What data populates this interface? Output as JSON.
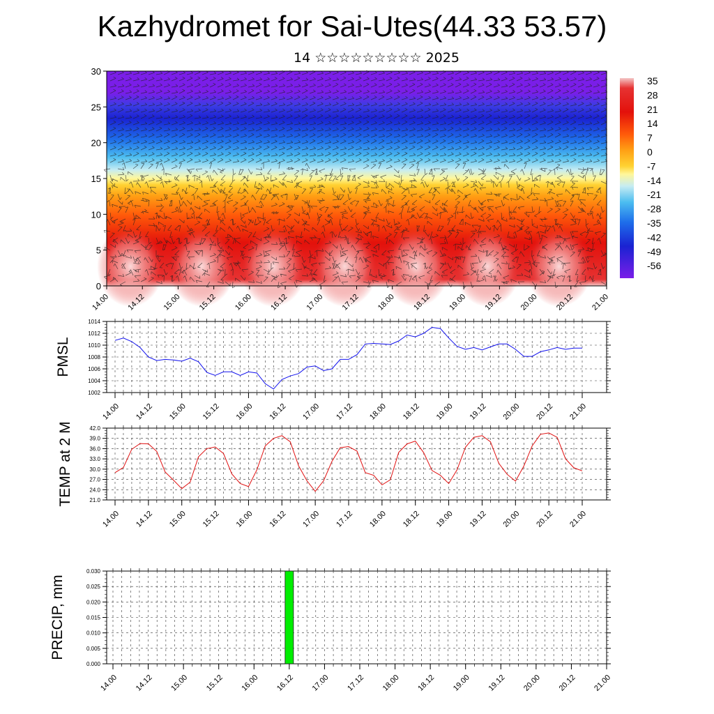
{
  "header": {
    "title": "Kazhydromet for Sai-Utes(44.33 53.57)",
    "subtitle": "14 ☆☆☆☆☆☆☆☆☆ 2025"
  },
  "time_ticks": [
    "14.00",
    "14.12",
    "15.00",
    "15.12",
    "16.00",
    "16.12",
    "17.00",
    "17.12",
    "18.00",
    "18.12",
    "19.00",
    "19.12",
    "20.00",
    "20.12",
    "21.00"
  ],
  "chart_data": [
    {
      "type": "heatmap",
      "title": "",
      "xlabel": "",
      "ylabel": "",
      "xlim": [
        0,
        168
      ],
      "ylim": [
        0,
        30
      ],
      "y_ticks": [
        0,
        5,
        10,
        15,
        20,
        25,
        30
      ],
      "z_description": "temperature with wind barbs",
      "colorbar": {
        "labels": [
          "35",
          "28",
          "21",
          "14",
          "7",
          "0",
          "-7",
          "-14",
          "-21",
          "-28",
          "-35",
          "-42",
          "-49",
          "-56"
        ],
        "range": [
          -60,
          38
        ],
        "colors": [
          "#7a1ee8",
          "#2a1ef0",
          "#2e8ff0",
          "#b9e6f2",
          "#fff79a",
          "#ffc21a",
          "#ff8a0e",
          "#f02b08",
          "#d4070a",
          "#f3b8b8"
        ]
      }
    },
    {
      "type": "line",
      "ylabel": "PMSL",
      "ylim": [
        1002,
        1014
      ],
      "y_ticks": [
        "1002",
        "1004",
        "1006",
        "1008",
        "1010",
        "1012",
        "1014"
      ],
      "color": "#1010ee",
      "x_hours": [
        0,
        3,
        6,
        9,
        12,
        15,
        18,
        21,
        24,
        27,
        30,
        33,
        36,
        39,
        42,
        45,
        48,
        51,
        54,
        57,
        60,
        63,
        66,
        69,
        72,
        75,
        78,
        81,
        84,
        87,
        90,
        93,
        96,
        99,
        102,
        105,
        108,
        111,
        114,
        117,
        120,
        123,
        126,
        129,
        132,
        135,
        138,
        141,
        144,
        147,
        150,
        153,
        156,
        159,
        162,
        165,
        168
      ],
      "values": [
        1010.8,
        1011.2,
        1010.6,
        1009.6,
        1008.0,
        1007.4,
        1007.6,
        1007.5,
        1007.3,
        1007.8,
        1007.2,
        1005.4,
        1004.9,
        1005.5,
        1005.5,
        1004.9,
        1005.5,
        1005.3,
        1003.5,
        1002.6,
        1004.2,
        1004.8,
        1005.2,
        1006.3,
        1006.5,
        1005.7,
        1006.0,
        1007.6,
        1007.6,
        1008.4,
        1010.2,
        1010.3,
        1010.2,
        1010.1,
        1010.7,
        1011.7,
        1011.4,
        1012.0,
        1013.0,
        1012.8,
        1011.2,
        1009.8,
        1009.3,
        1009.6,
        1009.2,
        1009.7,
        1010.2,
        1010.2,
        1009.3,
        1008.1,
        1008.1,
        1008.9,
        1009.2,
        1009.6,
        1009.3,
        1009.5,
        1009.5
      ]
    },
    {
      "type": "line",
      "ylabel": "TEMP at 2 M",
      "ylim": [
        21,
        42
      ],
      "y_ticks": [
        "21.0",
        "24.0",
        "27.0",
        "30.0",
        "33.0",
        "36.0",
        "39.0",
        "42.0"
      ],
      "color": "#e01010",
      "x_hours": [
        0,
        3,
        6,
        9,
        12,
        15,
        18,
        21,
        24,
        27,
        30,
        33,
        36,
        39,
        42,
        45,
        48,
        51,
        54,
        57,
        60,
        63,
        66,
        69,
        72,
        75,
        78,
        81,
        84,
        87,
        90,
        93,
        96,
        99,
        102,
        105,
        108,
        111,
        114,
        117,
        120,
        123,
        126,
        129,
        132,
        135,
        138,
        141,
        144,
        147,
        150,
        153,
        156,
        159,
        162,
        165,
        168
      ],
      "values": [
        29.0,
        30.5,
        35.8,
        37.5,
        37.4,
        35.2,
        29.2,
        26.8,
        24.3,
        26.2,
        33.6,
        36.0,
        36.5,
        34.6,
        28.6,
        25.8,
        24.9,
        29.8,
        36.8,
        39.0,
        39.8,
        38.0,
        31.0,
        26.6,
        23.5,
        26.6,
        32.3,
        36.3,
        36.6,
        35.3,
        29.0,
        28.2,
        25.4,
        26.9,
        34.9,
        37.4,
        38.2,
        34.8,
        29.6,
        28.2,
        25.8,
        29.8,
        36.4,
        39.3,
        39.8,
        38.0,
        31.7,
        28.5,
        26.5,
        30.9,
        36.8,
        40.2,
        40.6,
        39.3,
        33.0,
        30.4,
        29.5
      ]
    },
    {
      "type": "bar",
      "ylabel": "PRECIP, mm",
      "ylim": [
        0,
        0.03
      ],
      "y_ticks": [
        "0.000",
        "0.005",
        "0.010",
        "0.015",
        "0.020",
        "0.025",
        "0.030"
      ],
      "color": "#00ee00",
      "bars": [
        {
          "x_hour": 60,
          "value": 0.03
        }
      ]
    }
  ]
}
